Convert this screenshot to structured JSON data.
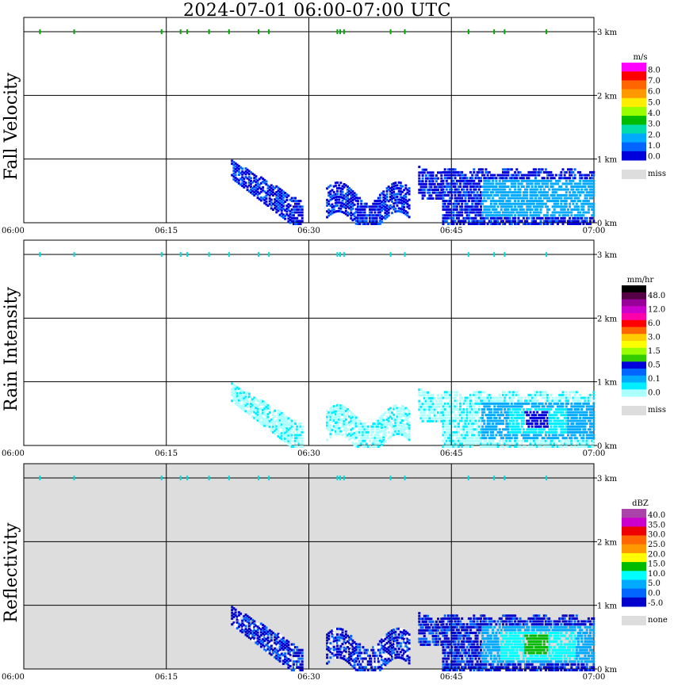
{
  "title": "2024-07-01   06:00-07:00 UTC",
  "x_ticks": [
    "06:00",
    "06:15",
    "06:30",
    "06:45",
    "07:00"
  ],
  "height_ticks": [
    "3 km",
    "2 km",
    "1 km",
    "0 km"
  ],
  "panels": [
    {
      "name": "fall-velocity",
      "ylabel": "Fall Velocity",
      "background": "#ffffff",
      "colorbar": {
        "unit": "m/s",
        "colors": [
          "#ff00ff",
          "#ff0000",
          "#ff6600",
          "#ff9900",
          "#ffee00",
          "#99ff00",
          "#00bb00",
          "#00ddaa",
          "#00aaff",
          "#0066ff",
          "#0000dd"
        ],
        "labels": [
          "8.0",
          "7.0",
          "6.0",
          "5.0",
          "4.0",
          "3.0",
          "2.0",
          "1.0",
          "0.0"
        ],
        "miss_color": "#dddddd",
        "miss_label": "miss"
      }
    },
    {
      "name": "rain-intensity",
      "ylabel": "Rain Intensity",
      "background": "#ffffff",
      "colorbar": {
        "unit": "mm/hr",
        "colors": [
          "#000000",
          "#550044",
          "#990099",
          "#cc00cc",
          "#ff00aa",
          "#ff0000",
          "#ff6600",
          "#ffcc00",
          "#ffff00",
          "#99ff00",
          "#33cc00",
          "#0000dd",
          "#0066ff",
          "#00aaff",
          "#00eeff",
          "#aaffff"
        ],
        "labels": [
          "48.0",
          "12.0",
          "6.0",
          "3.0",
          "1.5",
          "0.5",
          "0.1",
          "0.0"
        ],
        "miss_color": "#dddddd",
        "miss_label": "miss"
      }
    },
    {
      "name": "reflectivity",
      "ylabel": "Reflectivity",
      "background": "#dddddd",
      "colorbar": {
        "unit": "dBZ",
        "colors": [
          "#aa44aa",
          "#cc00cc",
          "#ee0000",
          "#ff6600",
          "#ff9900",
          "#ffff00",
          "#00bb00",
          "#00ffff",
          "#00aaff",
          "#0066ff",
          "#0000cc"
        ],
        "labels": [
          "40.0",
          "35.0",
          "30.0",
          "25.0",
          "20.0",
          "15.0",
          "10.0",
          "5.0",
          "0.0",
          "-5.0"
        ],
        "miss_color": "#dddddd",
        "miss_label": "none"
      }
    }
  ],
  "chart_data": {
    "type": "heatmap",
    "x_range": [
      "06:00",
      "07:00"
    ],
    "ylim_km": [
      0,
      3
    ],
    "grid": true,
    "cloud_marker_minutes": [
      1.7,
      5.3,
      14.5,
      16.5,
      17.2,
      19.5,
      21.6,
      24.7,
      25.8,
      33.0,
      33.3,
      33.7,
      38.6,
      40.1,
      46.8,
      49.5,
      50.6,
      55.0
    ],
    "echo_regions": [
      {
        "t_start_min": 21.8,
        "t_end_min": 29.2,
        "h_top_km": 1.0,
        "h_bottom_km": 0.0,
        "description": "sloping fall streak"
      },
      {
        "t_start_min": 31.8,
        "t_end_min": 40.5,
        "h_top_km": 0.6,
        "h_bottom_km": 0.0,
        "description": "low patch"
      },
      {
        "t_start_min": 41.5,
        "t_end_min": 60.0,
        "h_top_km": 0.9,
        "h_bottom_km": 0.0,
        "description": "main rain band"
      }
    ],
    "rain_intensity_peak_mmhr": 1.5,
    "reflectivity_peak_dbz": 15.0
  }
}
